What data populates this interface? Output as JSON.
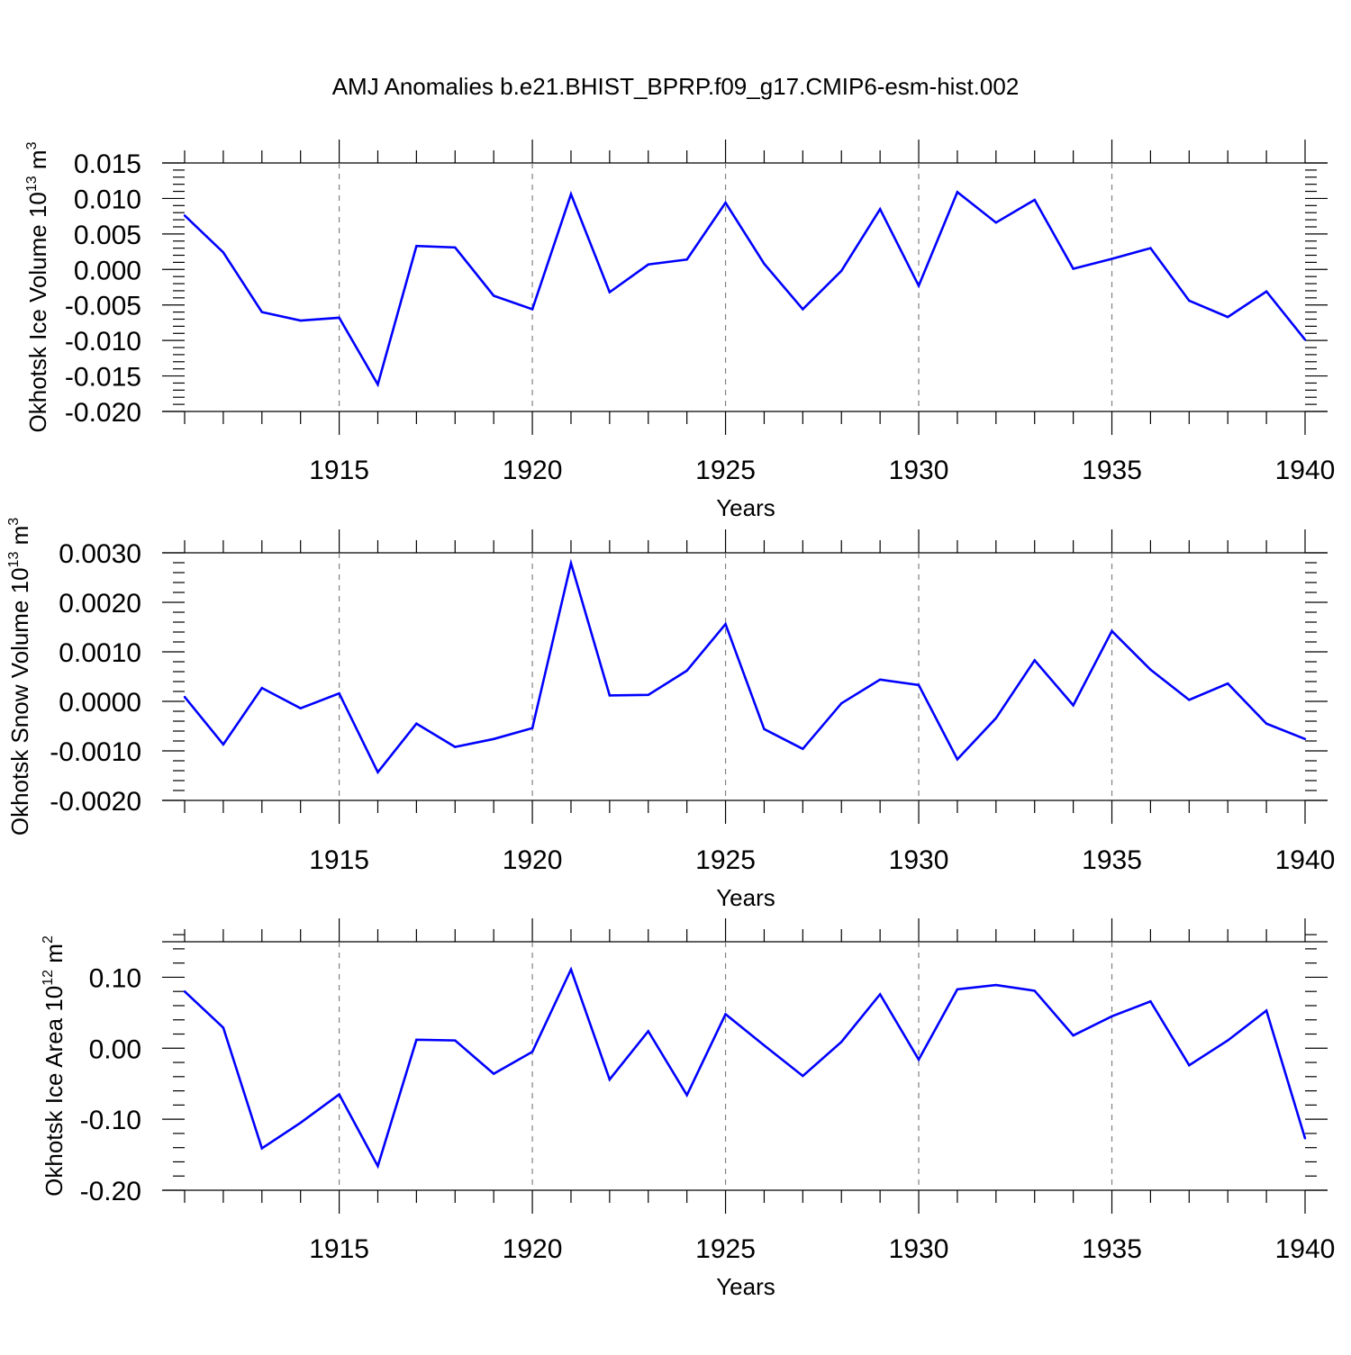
{
  "title": "AMJ Anomalies b.e21.BHIST_BPRP.f09_g17.CMIP6-esm-hist.002",
  "line_color": "#0000ff",
  "grid_color": "#808080",
  "chart_data": [
    {
      "type": "line",
      "name": "ice-volume",
      "ylabel": "Okhotsk Ice Volume 10",
      "ylabel_exp": "13",
      "ylabel_unit": " m",
      "ylabel_unit_exp": "3",
      "xlabel": "Years",
      "xlim": [
        1911,
        1940
      ],
      "ylim": [
        -0.02,
        0.015
      ],
      "yticks": [
        0.015,
        0.01,
        0.005,
        0.0,
        -0.005,
        -0.01,
        -0.015,
        -0.02
      ],
      "ytick_labels": [
        "0.015",
        "0.010",
        "0.005",
        "0.000",
        "-0.005",
        "-0.010",
        "-0.015",
        "-0.020"
      ],
      "yminor_step": 0.001,
      "xticks": [
        1915,
        1920,
        1925,
        1930,
        1935,
        1940
      ],
      "xtick_labels": [
        "1915",
        "1920",
        "1925",
        "1930",
        "1935",
        "1940"
      ],
      "x": [
        1911,
        1912,
        1913,
        1914,
        1915,
        1916,
        1917,
        1918,
        1919,
        1920,
        1921,
        1922,
        1923,
        1924,
        1925,
        1926,
        1927,
        1928,
        1929,
        1930,
        1931,
        1932,
        1933,
        1934,
        1935,
        1936,
        1937,
        1938,
        1939,
        1940
      ],
      "values": [
        0.0076,
        0.0024,
        -0.006,
        -0.0072,
        -0.0068,
        -0.0162,
        0.0033,
        0.0031,
        -0.0037,
        -0.0056,
        0.0106,
        -0.0032,
        0.0007,
        0.0014,
        0.0094,
        0.0008,
        -0.0056,
        -0.0002,
        0.0085,
        -0.0023,
        0.0109,
        0.0066,
        0.0098,
        0.0001,
        0.0015,
        0.003,
        -0.0044,
        -0.0067,
        -0.0031,
        -0.0099
      ]
    },
    {
      "type": "line",
      "name": "snow-volume",
      "ylabel": "Okhotsk Snow Volume 10",
      "ylabel_exp": "13",
      "ylabel_unit": " m",
      "ylabel_unit_exp": "3",
      "xlabel": "Years",
      "xlim": [
        1911,
        1940
      ],
      "ylim": [
        -0.002,
        0.003
      ],
      "yticks": [
        0.003,
        0.002,
        0.001,
        0.0,
        -0.001,
        -0.002
      ],
      "ytick_labels": [
        "0.0030",
        "0.0020",
        "0.0010",
        "0.0000",
        "-0.0010",
        "-0.0020"
      ],
      "yminor_step": 0.0002,
      "xticks": [
        1915,
        1920,
        1925,
        1930,
        1935,
        1940
      ],
      "xtick_labels": [
        "1915",
        "1920",
        "1925",
        "1930",
        "1935",
        "1940"
      ],
      "x": [
        1911,
        1912,
        1913,
        1914,
        1915,
        1916,
        1917,
        1918,
        1919,
        1920,
        1921,
        1922,
        1923,
        1924,
        1925,
        1926,
        1927,
        1928,
        1929,
        1930,
        1931,
        1932,
        1933,
        1934,
        1935,
        1936,
        1937,
        1938,
        1939,
        1940
      ],
      "values": [
        9e-05,
        -0.00087,
        0.00027,
        -0.00014,
        0.00016,
        -0.00143,
        -0.00045,
        -0.00092,
        -0.00076,
        -0.00054,
        0.00279,
        0.00012,
        0.00013,
        0.00062,
        0.00156,
        -0.00056,
        -0.00096,
        -4e-05,
        0.00044,
        0.00033,
        -0.00117,
        -0.00034,
        0.00083,
        -8e-05,
        0.00142,
        0.00064,
        3e-05,
        0.00036,
        -0.00045,
        -0.00076
      ]
    },
    {
      "type": "line",
      "name": "ice-area",
      "ylabel": "Okhotsk Ice Area 10",
      "ylabel_exp": "12",
      "ylabel_unit": " m",
      "ylabel_unit_exp": "2",
      "xlabel": "Years",
      "xlim": [
        1911,
        1940
      ],
      "ylim": [
        -0.2,
        0.15
      ],
      "yticks": [
        0.1,
        0.0,
        -0.1,
        -0.2
      ],
      "ytick_labels": [
        "0.10",
        "0.00",
        "-0.10",
        "-0.20"
      ],
      "yminor_step": 0.02,
      "xticks": [
        1915,
        1920,
        1925,
        1930,
        1935,
        1940
      ],
      "xtick_labels": [
        "1915",
        "1920",
        "1925",
        "1930",
        "1935",
        "1940"
      ],
      "x": [
        1911,
        1912,
        1913,
        1914,
        1915,
        1916,
        1917,
        1918,
        1919,
        1920,
        1921,
        1922,
        1923,
        1924,
        1925,
        1926,
        1927,
        1928,
        1929,
        1930,
        1931,
        1932,
        1933,
        1934,
        1935,
        1936,
        1937,
        1938,
        1939,
        1940
      ],
      "values": [
        0.08,
        0.029,
        -0.141,
        -0.105,
        -0.065,
        -0.166,
        0.012,
        0.011,
        -0.036,
        -0.005,
        0.111,
        -0.044,
        0.024,
        -0.066,
        0.048,
        0.004,
        -0.039,
        0.009,
        0.076,
        -0.016,
        0.083,
        0.089,
        0.081,
        0.018,
        0.045,
        0.066,
        -0.024,
        0.011,
        0.053,
        -0.127
      ]
    }
  ]
}
